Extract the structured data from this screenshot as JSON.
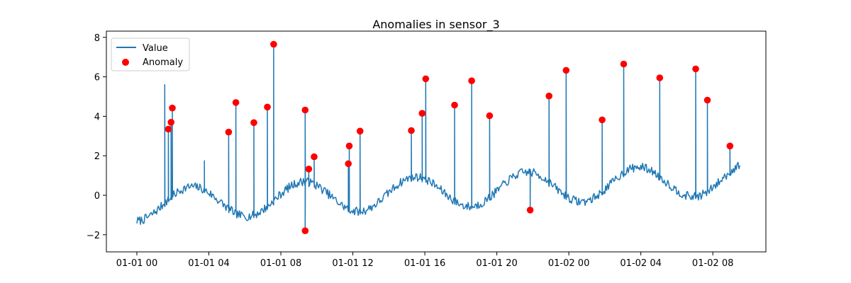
{
  "chart_data": {
    "type": "line",
    "title": "Anomalies in sensor_3",
    "xlabel": "",
    "ylabel": "",
    "x_range": [
      "01-01 00",
      "01-02 09"
    ],
    "x_end_hours": 33.5,
    "ylim": [
      -2.6,
      8.2
    ],
    "x_ticks": [
      {
        "hours": 0,
        "label": "01-01 00"
      },
      {
        "hours": 4,
        "label": "01-01 04"
      },
      {
        "hours": 8,
        "label": "01-01 08"
      },
      {
        "hours": 12,
        "label": "01-01 12"
      },
      {
        "hours": 16,
        "label": "01-01 16"
      },
      {
        "hours": 20,
        "label": "01-01 20"
      },
      {
        "hours": 24,
        "label": "01-02 00"
      },
      {
        "hours": 28,
        "label": "01-02 04"
      },
      {
        "hours": 32,
        "label": "01-02 08"
      }
    ],
    "y_ticks": [
      {
        "value": -2,
        "label": "−2"
      },
      {
        "value": 0,
        "label": "0"
      },
      {
        "value": 2,
        "label": "2"
      },
      {
        "value": 4,
        "label": "4"
      },
      {
        "value": 6,
        "label": "6"
      },
      {
        "value": 8,
        "label": "8"
      }
    ],
    "legend": {
      "position": "upper-left",
      "entries": [
        {
          "key": "value",
          "label": "Value"
        },
        {
          "key": "anomaly",
          "label": "Anomaly"
        }
      ]
    },
    "grid": false,
    "colors": {
      "value": "#1f77b4",
      "anomaly": "#ff0000"
    },
    "series": [
      {
        "key": "value",
        "kind": "line",
        "baseline": {
          "description_units": "hours",
          "start_hours": 0,
          "end_hours": 36.9,
          "step_hours": 0.05,
          "offset": -0.5,
          "daily_amplitude": 0.9,
          "trend_per_hour": 0.04,
          "noise": 0.22,
          "seed": 7
        }
      },
      {
        "key": "anomaly",
        "kind": "scatter",
        "points": [
          {
            "x": 1.75,
            "y": 3.35
          },
          {
            "x": 1.9,
            "y": 3.7
          },
          {
            "x": 1.97,
            "y": 4.42
          },
          {
            "x": 5.1,
            "y": 3.2
          },
          {
            "x": 5.5,
            "y": 4.7
          },
          {
            "x": 6.5,
            "y": 3.68
          },
          {
            "x": 7.25,
            "y": 4.47
          },
          {
            "x": 7.6,
            "y": 7.65
          },
          {
            "x": 9.35,
            "y": 4.32
          },
          {
            "x": 9.35,
            "y": -1.8
          },
          {
            "x": 9.55,
            "y": 1.33
          },
          {
            "x": 9.85,
            "y": 1.95
          },
          {
            "x": 11.8,
            "y": 2.5
          },
          {
            "x": 11.75,
            "y": 1.6
          },
          {
            "x": 12.4,
            "y": 3.25
          },
          {
            "x": 15.25,
            "y": 3.28
          },
          {
            "x": 15.85,
            "y": 4.15
          },
          {
            "x": 16.05,
            "y": 5.9
          },
          {
            "x": 17.65,
            "y": 4.57
          },
          {
            "x": 18.6,
            "y": 5.8
          },
          {
            "x": 19.6,
            "y": 4.03
          },
          {
            "x": 21.85,
            "y": -0.75
          },
          {
            "x": 22.9,
            "y": 5.03
          },
          {
            "x": 23.85,
            "y": 6.33
          },
          {
            "x": 25.85,
            "y": 3.82
          },
          {
            "x": 27.05,
            "y": 6.65
          },
          {
            "x": 29.05,
            "y": 5.95
          },
          {
            "x": 31.05,
            "y": 6.4
          },
          {
            "x": 31.7,
            "y": 4.82
          },
          {
            "x": 32.95,
            "y": 2.5
          }
        ]
      }
    ],
    "extra_spikes": [
      {
        "x": 1.55,
        "y": 5.6
      },
      {
        "x": 3.75,
        "y": 1.75
      }
    ]
  }
}
